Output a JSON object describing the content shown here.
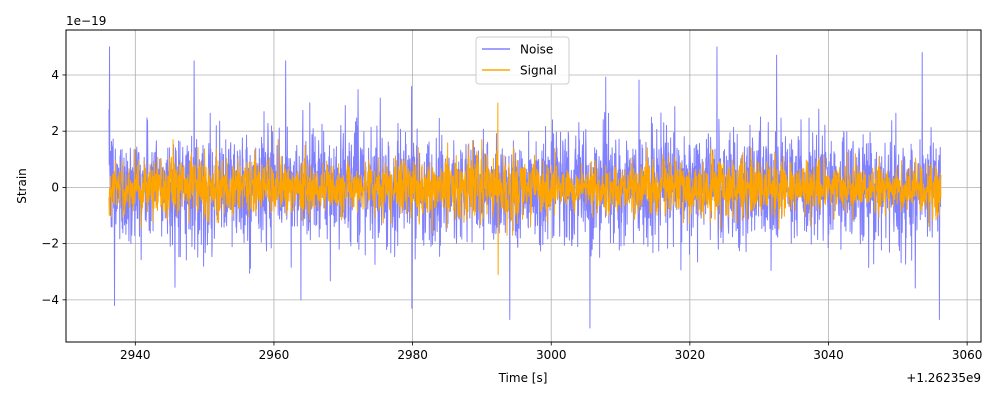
{
  "chart_data": {
    "type": "line",
    "title": "",
    "xlabel": "Time [s]",
    "ylabel": "Strain",
    "x_offset_label": "+1.26235e9",
    "y_scale_label": "1e−19",
    "xlim": [
      2930,
      3062
    ],
    "ylim": [
      -5.5,
      5.6
    ],
    "xticks": [
      2940,
      2960,
      2980,
      3000,
      3020,
      3040,
      3060
    ],
    "yticks": [
      -4,
      -2,
      0,
      2,
      4
    ],
    "ytick_labels": [
      "−4",
      "−2",
      "0",
      "2",
      "4"
    ],
    "grid": true,
    "legend_position": "upper center",
    "series": [
      {
        "name": "Noise",
        "color": "#8080ff",
        "x_range": [
          2936.2,
          3056.2
        ],
        "typical_abs_envelope": 2.0,
        "max_peaks": [
          {
            "x": 2936.3,
            "y": 5.0
          },
          {
            "x": 2948.5,
            "y": 4.5
          },
          {
            "x": 2961.7,
            "y": 4.5
          },
          {
            "x": 3023.9,
            "y": 5.0
          },
          {
            "x": 3032.5,
            "y": 4.7
          },
          {
            "x": 3053.5,
            "y": 4.8
          }
        ],
        "min_troughs": [
          {
            "x": 2937.0,
            "y": -4.2
          },
          {
            "x": 2979.9,
            "y": -4.3
          },
          {
            "x": 2994.0,
            "y": -4.7
          },
          {
            "x": 3005.6,
            "y": -5.0
          },
          {
            "x": 3056.0,
            "y": -4.7
          }
        ]
      },
      {
        "name": "Signal",
        "color": "#ffa500",
        "x_range": [
          2936.2,
          3056.2
        ],
        "typical_abs_envelope": 1.0,
        "event": {
          "x": 2992.3,
          "peak": 3.0,
          "trough": -3.1
        }
      }
    ]
  }
}
